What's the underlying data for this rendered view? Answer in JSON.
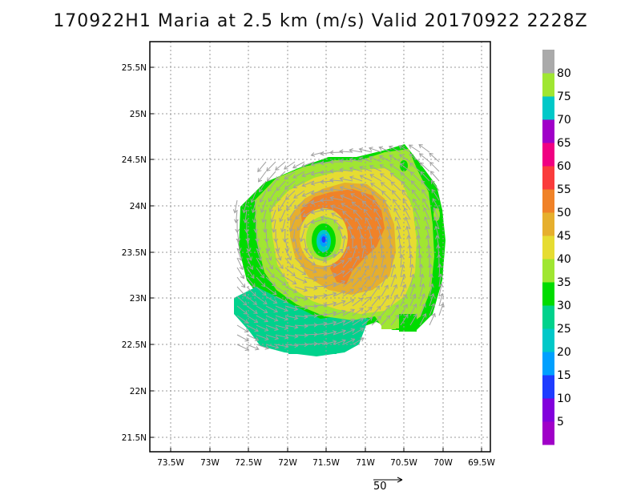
{
  "title": "170922H1 Maria at 2.5 km (m/s) Valid 20170922  2228Z",
  "map": {
    "lon_ticks": [
      "73.5W",
      "73W",
      "72.5W",
      "72W",
      "71.5W",
      "71W",
      "70.5W",
      "70W",
      "69.5W"
    ],
    "lat_ticks": [
      "25.5N",
      "25N",
      "24.5N",
      "24N",
      "23.5N",
      "23N",
      "22.5N",
      "22N",
      "21.5N"
    ],
    "storm_center": {
      "lon": -71.5,
      "lat": 23.65
    },
    "gridlines": "dotted"
  },
  "colorbar": {
    "labels": [
      "5",
      "10",
      "15",
      "20",
      "25",
      "30",
      "35",
      "40",
      "45",
      "50",
      "55",
      "60",
      "65",
      "70",
      "75",
      "80"
    ],
    "colors": [
      "#a000c8",
      "#8200dc",
      "#1e3cff",
      "#00a0ff",
      "#00c8c8",
      "#00d28c",
      "#00dc00",
      "#a0e632",
      "#e6dc32",
      "#e6af2d",
      "#f08228",
      "#fa3c3c",
      "#f00082",
      "#a000c8",
      "#00c8c8",
      "#a0e632",
      "#aaaaaa"
    ]
  },
  "reference_vector": {
    "label": "50"
  },
  "colors": {
    "vector": "#a0a0a0"
  }
}
